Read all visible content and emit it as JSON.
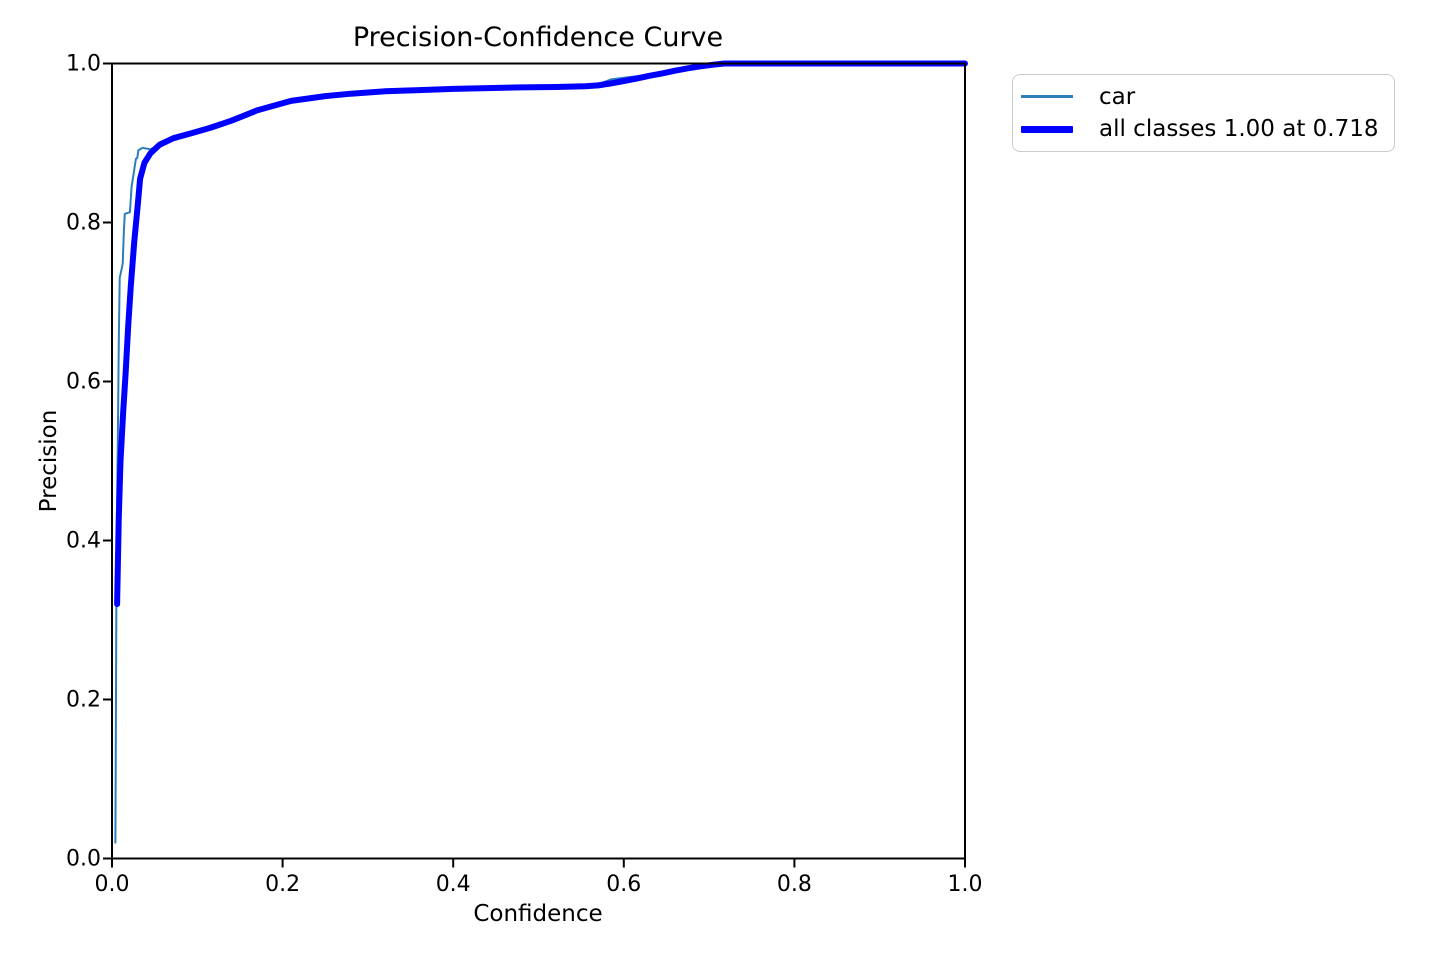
{
  "chart_data": {
    "type": "line",
    "title": "Precision-Confidence Curve",
    "xlabel": "Confidence",
    "ylabel": "Precision",
    "xlim": [
      0.0,
      1.0
    ],
    "ylim": [
      0.0,
      1.0
    ],
    "xticks": [
      "0.0",
      "0.2",
      "0.4",
      "0.6",
      "0.8",
      "1.0"
    ],
    "yticks": [
      "0.0",
      "0.2",
      "0.4",
      "0.6",
      "0.8",
      "1.0"
    ],
    "grid": false,
    "legend_position": "outside-upper-right",
    "series": [
      {
        "name": "car",
        "color": "#2e7ebc",
        "linewidth": 2,
        "points": [
          [
            0.004,
            0.02
          ],
          [
            0.005,
            0.3
          ],
          [
            0.006,
            0.45
          ],
          [
            0.007,
            0.55
          ],
          [
            0.008,
            0.65
          ],
          [
            0.009,
            0.73
          ],
          [
            0.0125,
            0.748
          ],
          [
            0.014,
            0.79
          ],
          [
            0.015,
            0.811
          ],
          [
            0.021,
            0.813
          ],
          [
            0.023,
            0.845
          ],
          [
            0.026,
            0.866
          ],
          [
            0.028,
            0.88
          ],
          [
            0.0295,
            0.881
          ],
          [
            0.031,
            0.891
          ],
          [
            0.036,
            0.894
          ],
          [
            0.045,
            0.892
          ],
          [
            0.056,
            0.899
          ],
          [
            0.072,
            0.907
          ],
          [
            0.092,
            0.913
          ],
          [
            0.115,
            0.92
          ],
          [
            0.14,
            0.929
          ],
          [
            0.17,
            0.942
          ],
          [
            0.21,
            0.954
          ],
          [
            0.25,
            0.96
          ],
          [
            0.28,
            0.963
          ],
          [
            0.32,
            0.966
          ],
          [
            0.36,
            0.967
          ],
          [
            0.4,
            0.969
          ],
          [
            0.44,
            0.97
          ],
          [
            0.48,
            0.971
          ],
          [
            0.52,
            0.971
          ],
          [
            0.555,
            0.972
          ],
          [
            0.57,
            0.974
          ],
          [
            0.585,
            0.98
          ],
          [
            0.6,
            0.982
          ],
          [
            0.615,
            0.984
          ],
          [
            0.63,
            0.986
          ],
          [
            0.645,
            0.989
          ],
          [
            0.66,
            0.993
          ],
          [
            0.675,
            0.996
          ],
          [
            0.69,
            0.998
          ],
          [
            0.705,
            1.0
          ],
          [
            0.75,
            1.0
          ],
          [
            1.0,
            1.0
          ]
        ]
      },
      {
        "name": "all classes 1.00 at 0.718",
        "color": "#0000ff",
        "linewidth": 6,
        "points": [
          [
            0.006,
            0.32
          ],
          [
            0.008,
            0.43
          ],
          [
            0.01,
            0.5
          ],
          [
            0.013,
            0.56
          ],
          [
            0.016,
            0.61
          ],
          [
            0.019,
            0.67
          ],
          [
            0.022,
            0.72
          ],
          [
            0.026,
            0.775
          ],
          [
            0.03,
            0.82
          ],
          [
            0.033,
            0.855
          ],
          [
            0.038,
            0.875
          ],
          [
            0.045,
            0.887
          ],
          [
            0.056,
            0.898
          ],
          [
            0.072,
            0.906
          ],
          [
            0.092,
            0.912
          ],
          [
            0.115,
            0.919
          ],
          [
            0.14,
            0.928
          ],
          [
            0.17,
            0.941
          ],
          [
            0.21,
            0.953
          ],
          [
            0.25,
            0.959
          ],
          [
            0.28,
            0.962
          ],
          [
            0.32,
            0.965
          ],
          [
            0.36,
            0.9665
          ],
          [
            0.4,
            0.968
          ],
          [
            0.44,
            0.969
          ],
          [
            0.48,
            0.97
          ],
          [
            0.52,
            0.9705
          ],
          [
            0.555,
            0.9715
          ],
          [
            0.57,
            0.9725
          ],
          [
            0.585,
            0.975
          ],
          [
            0.6,
            0.978
          ],
          [
            0.615,
            0.981
          ],
          [
            0.63,
            0.9845
          ],
          [
            0.645,
            0.9875
          ],
          [
            0.66,
            0.991
          ],
          [
            0.675,
            0.994
          ],
          [
            0.69,
            0.9965
          ],
          [
            0.705,
            0.9985
          ],
          [
            0.718,
            1.0
          ],
          [
            0.76,
            1.0
          ],
          [
            0.85,
            1.0
          ],
          [
            1.0,
            1.0
          ]
        ]
      }
    ]
  },
  "legend": {
    "items": [
      {
        "label": "car"
      },
      {
        "label": "all classes 1.00 at 0.718"
      }
    ]
  }
}
